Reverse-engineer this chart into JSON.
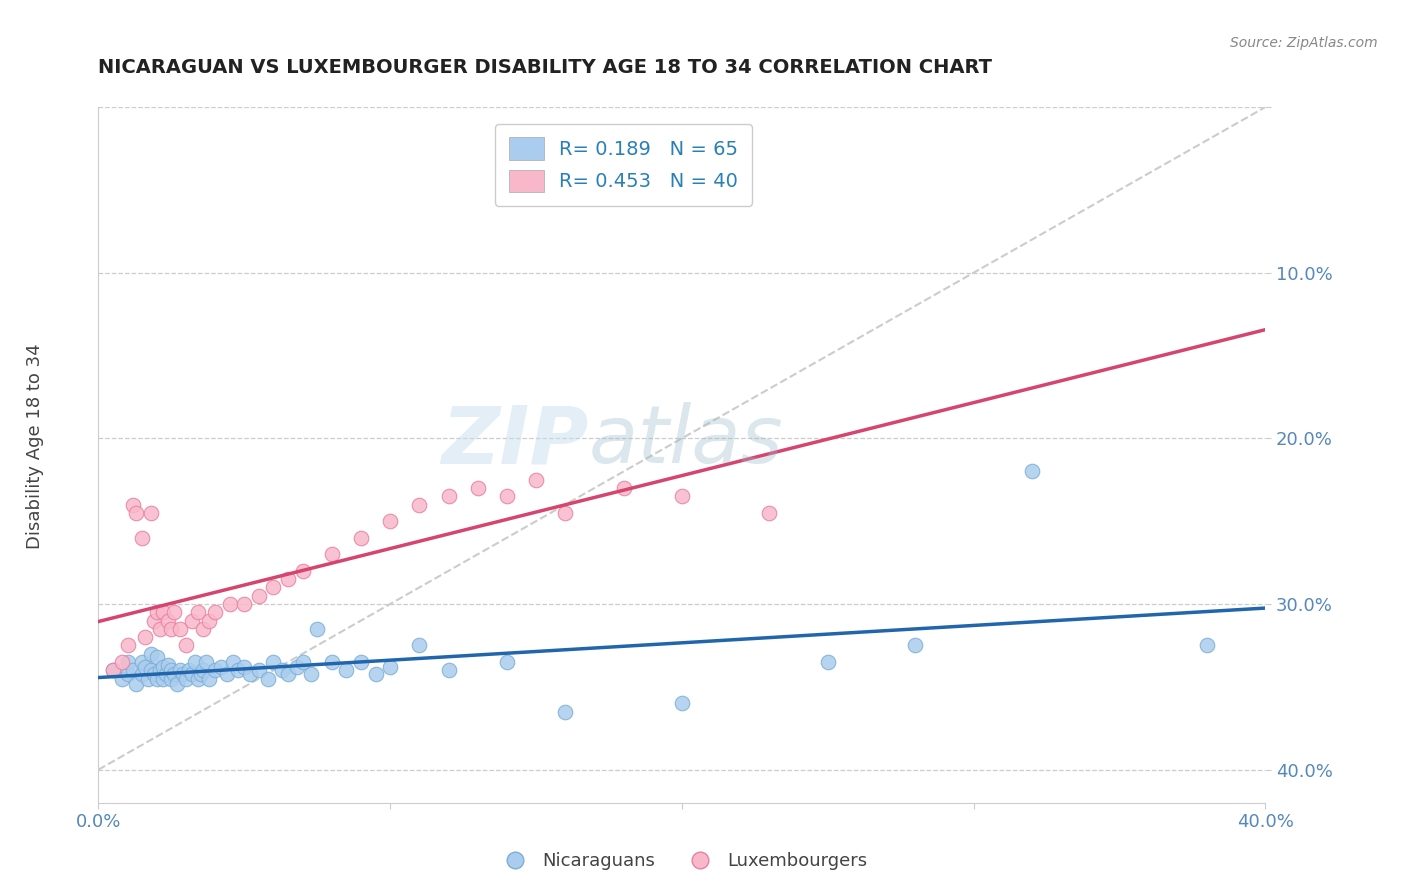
{
  "title": "NICARAGUAN VS LUXEMBOURGER DISABILITY AGE 18 TO 34 CORRELATION CHART",
  "source": "Source: ZipAtlas.com",
  "ylabel": "Disability Age 18 to 34",
  "xlim": [
    0.0,
    0.4
  ],
  "ylim": [
    -0.02,
    0.4
  ],
  "xticks": [
    0.0,
    0.1,
    0.2,
    0.3,
    0.4
  ],
  "yticks": [
    0.0,
    0.1,
    0.2,
    0.3,
    0.4
  ],
  "xticklabels": [
    "0.0%",
    "",
    "",
    "",
    "40.0%"
  ],
  "yticklabels_right": [
    "40.0%",
    "30.0%",
    "20.0%",
    "10.0%",
    ""
  ],
  "nicaraguan_color": "#aaccee",
  "nicaraguan_edge_color": "#7aafd4",
  "luxembourger_color": "#f9b8ca",
  "luxembourger_edge_color": "#e87fa0",
  "nicaraguan_line_color": "#2166ac",
  "luxembourger_line_color": "#d6456e",
  "diag_line_color": "#cccccc",
  "R_nicaraguan": 0.189,
  "N_nicaraguan": 65,
  "R_luxembourger": 0.453,
  "N_luxembourger": 40,
  "watermark_zip": "ZIP",
  "watermark_atlas": "atlas",
  "legend_nic_color": "#aaccee",
  "legend_lux_color": "#f9b8ca",
  "legend_text_color": "#2980b9",
  "nicaraguan_x": [
    0.005,
    0.008,
    0.01,
    0.01,
    0.012,
    0.013,
    0.015,
    0.015,
    0.016,
    0.017,
    0.018,
    0.018,
    0.019,
    0.02,
    0.02,
    0.021,
    0.022,
    0.022,
    0.023,
    0.024,
    0.025,
    0.025,
    0.026,
    0.027,
    0.028,
    0.029,
    0.03,
    0.031,
    0.032,
    0.033,
    0.034,
    0.035,
    0.036,
    0.037,
    0.038,
    0.04,
    0.042,
    0.044,
    0.046,
    0.048,
    0.05,
    0.052,
    0.055,
    0.058,
    0.06,
    0.063,
    0.065,
    0.068,
    0.07,
    0.073,
    0.075,
    0.08,
    0.085,
    0.09,
    0.095,
    0.1,
    0.11,
    0.12,
    0.14,
    0.16,
    0.2,
    0.25,
    0.28,
    0.32,
    0.38
  ],
  "nicaraguan_y": [
    0.06,
    0.055,
    0.058,
    0.065,
    0.06,
    0.052,
    0.058,
    0.065,
    0.062,
    0.055,
    0.06,
    0.07,
    0.058,
    0.055,
    0.068,
    0.06,
    0.062,
    0.055,
    0.058,
    0.063,
    0.055,
    0.06,
    0.058,
    0.052,
    0.06,
    0.058,
    0.055,
    0.06,
    0.058,
    0.065,
    0.055,
    0.058,
    0.06,
    0.065,
    0.055,
    0.06,
    0.062,
    0.058,
    0.065,
    0.06,
    0.062,
    0.058,
    0.06,
    0.055,
    0.065,
    0.06,
    0.058,
    0.062,
    0.065,
    0.058,
    0.085,
    0.065,
    0.06,
    0.065,
    0.058,
    0.062,
    0.075,
    0.06,
    0.065,
    0.035,
    0.04,
    0.065,
    0.075,
    0.18,
    0.075
  ],
  "luxembourger_x": [
    0.005,
    0.008,
    0.01,
    0.012,
    0.013,
    0.015,
    0.016,
    0.018,
    0.019,
    0.02,
    0.021,
    0.022,
    0.024,
    0.025,
    0.026,
    0.028,
    0.03,
    0.032,
    0.034,
    0.036,
    0.038,
    0.04,
    0.045,
    0.05,
    0.055,
    0.06,
    0.065,
    0.07,
    0.08,
    0.09,
    0.1,
    0.11,
    0.12,
    0.13,
    0.14,
    0.15,
    0.16,
    0.18,
    0.2,
    0.23
  ],
  "luxembourger_y": [
    0.06,
    0.065,
    0.075,
    0.16,
    0.155,
    0.14,
    0.08,
    0.155,
    0.09,
    0.095,
    0.085,
    0.095,
    0.09,
    0.085,
    0.095,
    0.085,
    0.075,
    0.09,
    0.095,
    0.085,
    0.09,
    0.095,
    0.1,
    0.1,
    0.105,
    0.11,
    0.115,
    0.12,
    0.13,
    0.14,
    0.15,
    0.16,
    0.165,
    0.17,
    0.165,
    0.175,
    0.155,
    0.17,
    0.165,
    0.155
  ]
}
